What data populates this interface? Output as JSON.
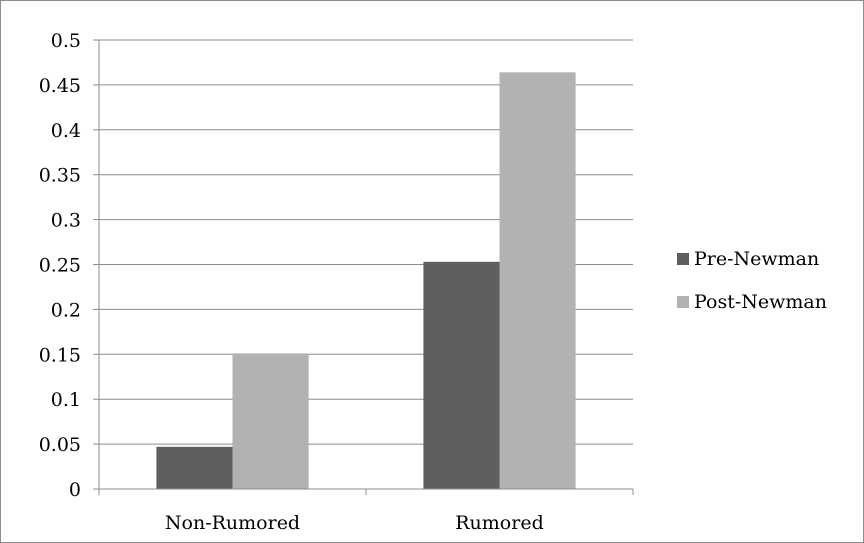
{
  "chart_data": {
    "type": "bar",
    "title": "",
    "xlabel": "",
    "ylabel": "",
    "categories": [
      "Non-Rumored",
      "Rumored"
    ],
    "series": [
      {
        "name": "Pre-Newman",
        "values": [
          0.047,
          0.253
        ],
        "color": "#5f5f5f"
      },
      {
        "name": "Post-Newman",
        "values": [
          0.151,
          0.464
        ],
        "color": "#b2b2b2"
      }
    ],
    "ylim": [
      0,
      0.5
    ],
    "yticks": [
      0,
      0.05,
      0.1,
      0.15,
      0.2,
      0.25,
      0.3,
      0.35,
      0.4,
      0.45,
      0.5
    ],
    "ytick_labels": [
      "0",
      "0.05",
      "0.1",
      "0.15",
      "0.2",
      "0.25",
      "0.3",
      "0.35",
      "0.4",
      "0.45",
      "0.5"
    ],
    "grid": true,
    "legend_position": "right"
  }
}
